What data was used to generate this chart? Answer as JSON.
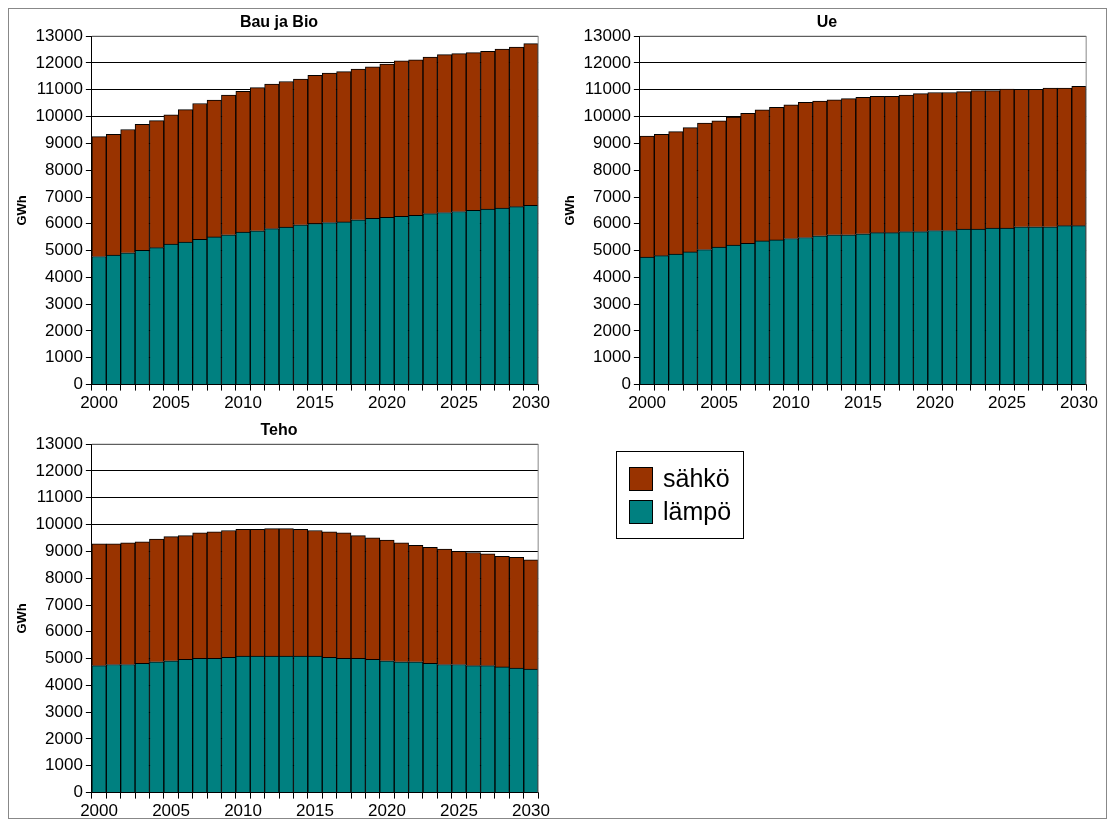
{
  "chart_data": [
    {
      "type": "bar",
      "title": "Bau ja Bio",
      "ylabel": "GWh",
      "stacked": true,
      "grid": "y",
      "ylim": [
        0,
        13000
      ],
      "yticks": [
        0,
        1000,
        2000,
        3000,
        4000,
        5000,
        6000,
        7000,
        8000,
        9000,
        10000,
        11000,
        12000,
        13000
      ],
      "categories": [
        "2000",
        null,
        null,
        null,
        null,
        "2005",
        null,
        null,
        null,
        null,
        "2010",
        null,
        null,
        null,
        null,
        "2015",
        null,
        null,
        null,
        null,
        "2020",
        null,
        null,
        null,
        null,
        "2025",
        null,
        null,
        null,
        null,
        "2030"
      ],
      "series": [
        {
          "color": "#008080",
          "values": [
            4780,
            4830,
            4920,
            5010,
            5110,
            5240,
            5320,
            5420,
            5510,
            5590,
            5690,
            5740,
            5820,
            5880,
            5960,
            6010,
            6050,
            6070,
            6150,
            6200,
            6240,
            6280,
            6320,
            6380,
            6420,
            6460,
            6500,
            6550,
            6590,
            6640,
            6690
          ]
        },
        {
          "color": "#993300",
          "values": [
            4470,
            4510,
            4600,
            4700,
            4740,
            4830,
            4940,
            5070,
            5110,
            5210,
            5250,
            5340,
            5390,
            5430,
            5440,
            5530,
            5570,
            5610,
            5620,
            5660,
            5720,
            5800,
            5800,
            5840,
            5890,
            5890,
            5890,
            5890,
            5930,
            5950,
            6030
          ]
        }
      ]
    },
    {
      "type": "bar",
      "title": "Ue",
      "ylabel": "GWh",
      "stacked": true,
      "grid": "y",
      "ylim": [
        0,
        13000
      ],
      "yticks": [
        0,
        1000,
        2000,
        3000,
        4000,
        5000,
        6000,
        7000,
        8000,
        9000,
        10000,
        11000,
        12000,
        13000
      ],
      "categories": [
        "2000",
        null,
        null,
        null,
        null,
        "2005",
        null,
        null,
        null,
        null,
        "2010",
        null,
        null,
        null,
        null,
        "2015",
        null,
        null,
        null,
        null,
        "2020",
        null,
        null,
        null,
        null,
        "2025",
        null,
        null,
        null,
        null,
        "2030"
      ],
      "series": [
        {
          "color": "#008080",
          "values": [
            4760,
            4810,
            4870,
            4950,
            5040,
            5130,
            5210,
            5270,
            5360,
            5400,
            5450,
            5490,
            5550,
            5590,
            5590,
            5630,
            5670,
            5670,
            5710,
            5710,
            5750,
            5750,
            5800,
            5800,
            5840,
            5840,
            5890,
            5890,
            5890,
            5930,
            5930
          ]
        },
        {
          "color": "#993300",
          "values": [
            4510,
            4530,
            4570,
            4640,
            4720,
            4710,
            4770,
            4850,
            4890,
            4950,
            4990,
            5040,
            5030,
            5040,
            5080,
            5090,
            5090,
            5090,
            5090,
            5150,
            5150,
            5150,
            5130,
            5170,
            5130,
            5190,
            5130,
            5130,
            5170,
            5130,
            5200
          ]
        }
      ]
    },
    {
      "type": "bar",
      "title": "Teho",
      "ylabel": "GWh",
      "stacked": true,
      "grid": "y",
      "legend": "right",
      "ylim": [
        0,
        13000
      ],
      "yticks": [
        0,
        1000,
        2000,
        3000,
        4000,
        5000,
        6000,
        7000,
        8000,
        9000,
        10000,
        11000,
        12000,
        13000
      ],
      "categories": [
        "2000",
        null,
        null,
        null,
        null,
        "2005",
        null,
        null,
        null,
        null,
        "2010",
        null,
        null,
        null,
        null,
        "2015",
        null,
        null,
        null,
        null,
        "2020",
        null,
        null,
        null,
        null,
        "2025",
        null,
        null,
        null,
        null,
        "2030"
      ],
      "series": [
        {
          "name": "lämpö",
          "color": "#008080",
          "values": [
            4740,
            4780,
            4780,
            4820,
            4880,
            4920,
            4970,
            5010,
            5010,
            5050,
            5090,
            5090,
            5090,
            5090,
            5090,
            5090,
            5050,
            5010,
            5010,
            4970,
            4920,
            4880,
            4880,
            4820,
            4780,
            4780,
            4740,
            4740,
            4690,
            4650,
            4610
          ]
        },
        {
          "name": "sähkö",
          "color": "#993300",
          "values": [
            4540,
            4500,
            4540,
            4540,
            4580,
            4630,
            4620,
            4680,
            4720,
            4730,
            4730,
            4730,
            4760,
            4760,
            4730,
            4690,
            4680,
            4680,
            4580,
            4540,
            4500,
            4440,
            4350,
            4330,
            4310,
            4220,
            4220,
            4170,
            4130,
            4130,
            4080
          ]
        }
      ]
    }
  ]
}
